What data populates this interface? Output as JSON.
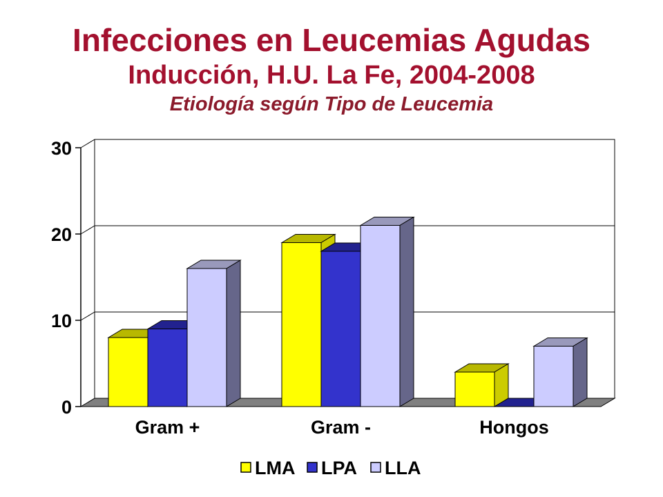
{
  "title": "Infecciones en Leucemias Agudas",
  "subtitle": "Inducción, H.U. La Fe, 2004-2008",
  "subtitle2": "Etiología según Tipo de Leucemia",
  "colors": {
    "title": "#A3102E",
    "subtitle2": "#8B1A2B"
  },
  "chart_data": {
    "type": "bar",
    "style": "3d-clustered-column",
    "categories": [
      "Gram +",
      "Gram -",
      "Hongos"
    ],
    "series": [
      {
        "name": "LMA",
        "values": [
          8,
          19,
          4
        ],
        "color": "#FFFF00",
        "side": "#CCCC00",
        "top": "#B8B800"
      },
      {
        "name": "LPA",
        "values": [
          9,
          18,
          0
        ],
        "color": "#3333CC",
        "side": "#1F1F8A",
        "top": "#22228F"
      },
      {
        "name": "LLA",
        "values": [
          16,
          21,
          7
        ],
        "color": "#CCCCFF",
        "side": "#66668A",
        "top": "#9999BB"
      }
    ],
    "ylim": [
      0,
      30
    ],
    "yticks": [
      "0",
      "10",
      "20",
      "30"
    ],
    "xlabel": "",
    "ylabel": "",
    "grid": true,
    "legend": "bottom"
  }
}
